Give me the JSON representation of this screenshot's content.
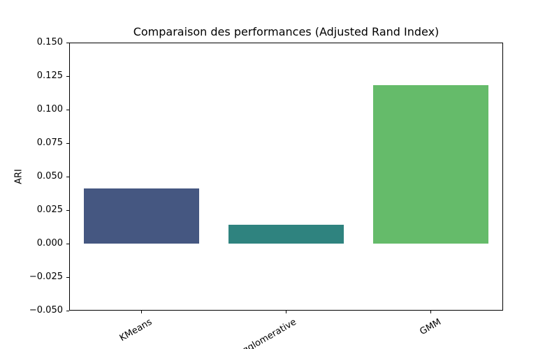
{
  "figure": {
    "background": "#ffffff",
    "text_color": "#000000",
    "axis_color": "#000000"
  },
  "chart_data": {
    "type": "bar",
    "title": "Comparaison des performances (Adjusted Rand Index)",
    "xlabel": "",
    "ylabel": "ARI",
    "categories": [
      "KMeans",
      "Agglomerative",
      "GMM"
    ],
    "values": [
      0.041,
      0.014,
      0.118
    ],
    "bar_colors": [
      "#455781",
      "#2f837f",
      "#65bb6a"
    ],
    "ylim": [
      -0.05,
      0.15
    ],
    "yticks": [
      0.15,
      0.125,
      0.1,
      0.075,
      0.05,
      0.025,
      0.0,
      -0.025,
      -0.05
    ],
    "ytick_format_decimals": 3,
    "bar_width_fraction": 0.8,
    "xtick_rotation_deg": 30,
    "grid": false,
    "legend": null
  }
}
